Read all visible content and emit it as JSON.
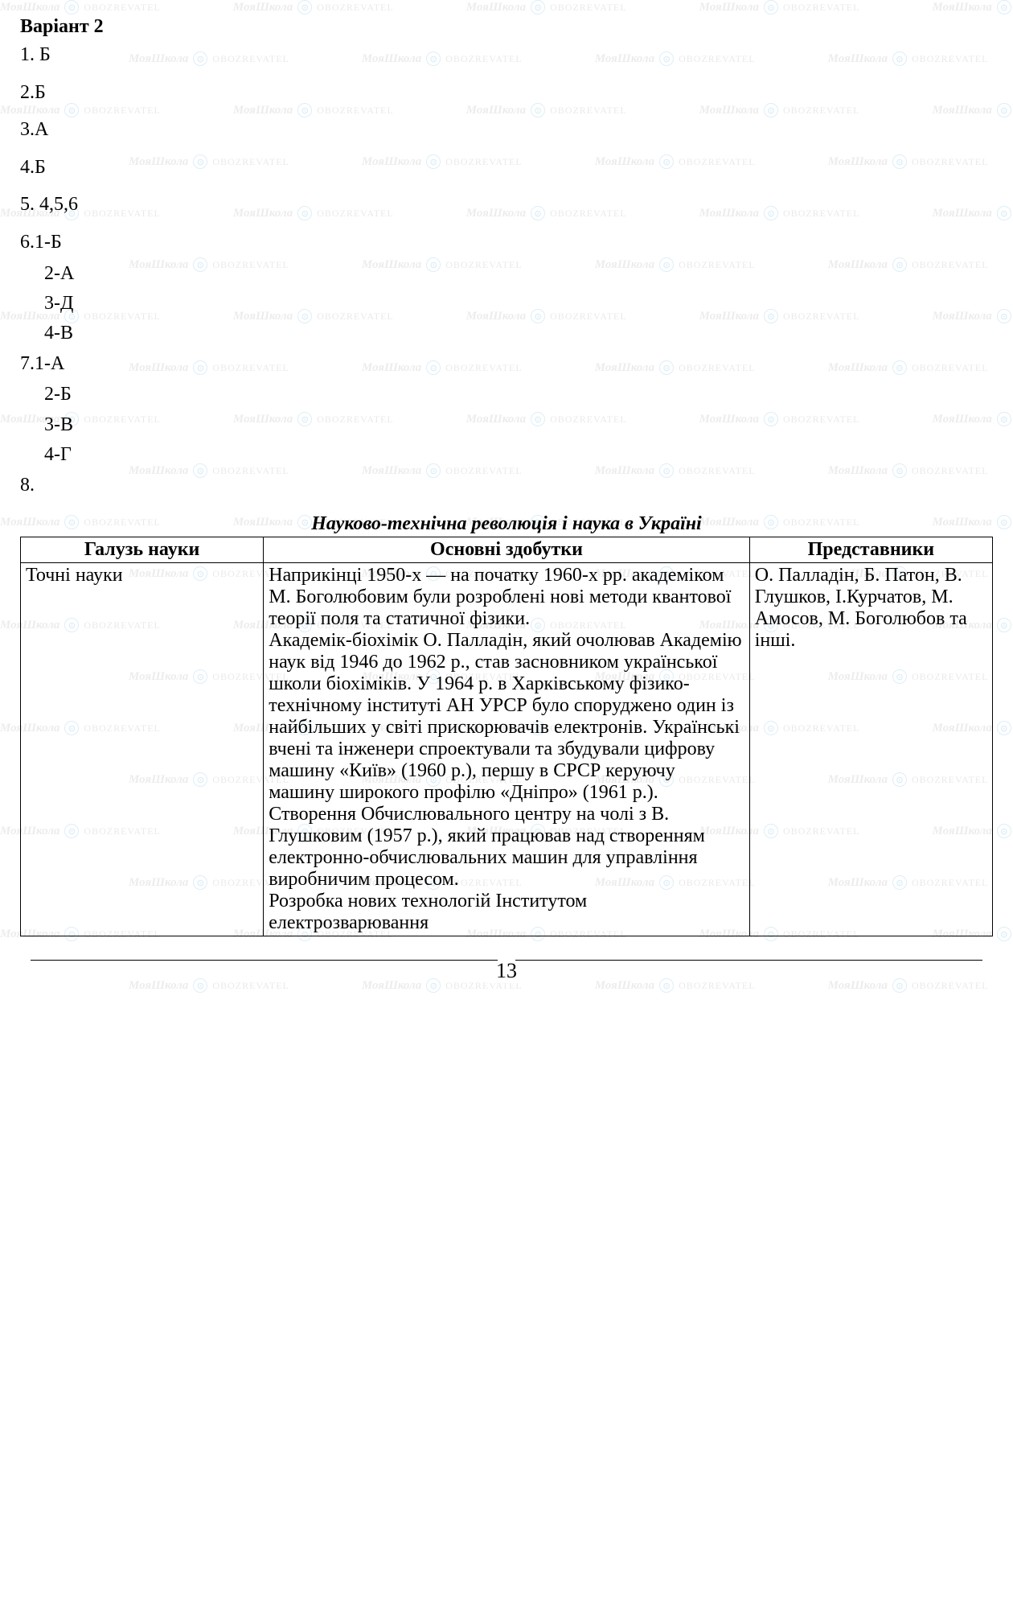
{
  "document": {
    "heading": "Варіант 2",
    "answers": [
      "1. Б",
      "2.Б",
      "3.А",
      "4.Б",
      "5. 4,5,6"
    ],
    "q6_first": "6.1-Б",
    "q6_sub": [
      "2-А",
      "3-Д",
      "4-В"
    ],
    "q7_first": "7.1-А",
    "q7_sub": [
      "2-Б",
      "3-В",
      "4-Г"
    ],
    "q8": "8.",
    "table_title": "Науково-технічна революція і наука в Україні",
    "table": {
      "headers": [
        "Галузь науки",
        "Основні здобутки",
        "Представники"
      ],
      "row1": {
        "col1": "Точні науки",
        "col2": "Наприкінці 1950-х — на початку 1960-х рр. академіком М. Боголюбовим були розроблені нові методи квантової теорії поля та статичної фізики.\nАкадемік-біохімік О. Палладін, який очолював Академію наук від 1946 до 1962 р., став засновником української школи біохіміків. У 1964 р. в Харківському фізико-технічному інституті АН УРСР було споруджено один із найбільших у світі прискорювачів електронів. Українські вчені та інженери спроектували та збудували цифрову машину «Київ» (1960 р.), першу в СРСР керуючу машину широкого профілю «Дніпро» (1961 р.). Створення Обчислювального центру на чолі з В. Глушковим (1957 р.), який працював над створенням електронно-обчислювальних машин для управління виробничим процесом.\nРозробка нових технологій Інститутом електрозварювання",
        "col3": "О. Палладін, Б. Патон, В. Глушков, І.Курчатов, М. Амосов, М. Боголюбов та інші."
      }
    },
    "page_number": "13",
    "watermark": {
      "text1": "МояШкола",
      "text2": "OBOZREVATEL"
    }
  }
}
